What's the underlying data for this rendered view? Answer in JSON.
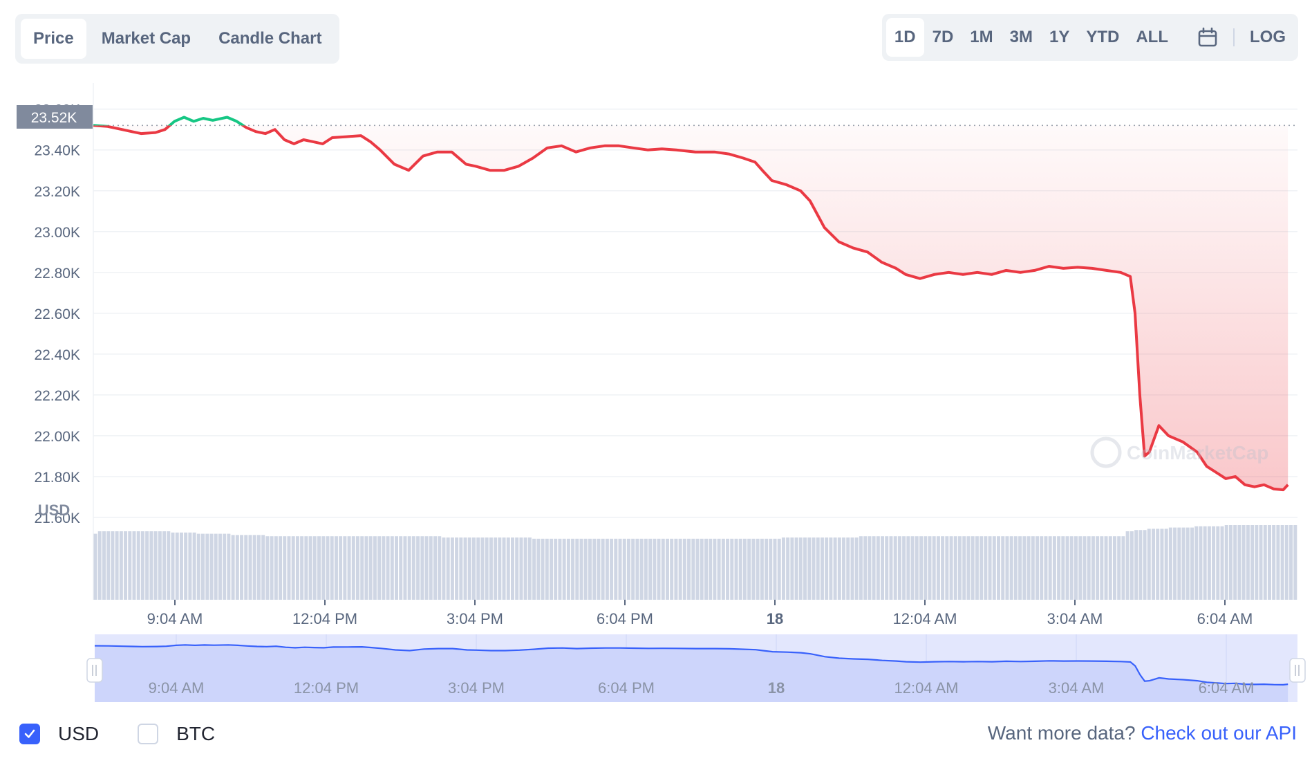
{
  "tabs": [
    {
      "label": "Price",
      "active": true
    },
    {
      "label": "Market Cap",
      "active": false
    },
    {
      "label": "Candle Chart",
      "active": false
    }
  ],
  "ranges": [
    {
      "label": "1D",
      "active": true
    },
    {
      "label": "7D",
      "active": false
    },
    {
      "label": "1M",
      "active": false
    },
    {
      "label": "3M",
      "active": false
    },
    {
      "label": "1Y",
      "active": false
    },
    {
      "label": "YTD",
      "active": false
    },
    {
      "label": "ALL",
      "active": false
    }
  ],
  "calendar_icon": "calendar-icon",
  "log_label": "LOG",
  "currency_label": "USD",
  "current_price_label": "23.52K",
  "watermark": "CoinMarketCap",
  "footer": {
    "usd_label": "USD",
    "usd_checked": true,
    "btc_label": "BTC",
    "btc_checked": false,
    "prompt": "Want more data?",
    "link": "Check out our API"
  },
  "colors": {
    "up": "#16c784",
    "down": "#ea3943",
    "accent": "#3861fb",
    "volume": "#cfd6e4"
  },
  "chart_data": {
    "type": "area",
    "y_unit": "USD",
    "ylim": [
      21400,
      23660
    ],
    "y_ticks": [
      23600,
      23400,
      23200,
      23000,
      22800,
      22600,
      22400,
      22200,
      22000,
      21800,
      21600
    ],
    "y_tick_labels": [
      "23.60K",
      "23.40K",
      "23.20K",
      "23.00K",
      "22.80K",
      "22.60K",
      "22.40K",
      "22.20K",
      "22.00K",
      "21.80K",
      "21.60K"
    ],
    "x_tick_labels": [
      "9:04 AM",
      "12:04 PM",
      "3:04 PM",
      "6:04 PM",
      "18",
      "12:04 AM",
      "3:04 AM",
      "6:04 AM"
    ],
    "grid": true,
    "reference_price": 23520,
    "series": [
      {
        "points": [
          [
            0,
            23520
          ],
          [
            0.3,
            23515
          ],
          [
            0.6,
            23500
          ],
          [
            0.8,
            23490
          ],
          [
            1.0,
            23480
          ],
          [
            1.3,
            23485
          ],
          [
            1.5,
            23500
          ],
          [
            1.7,
            23540
          ],
          [
            1.9,
            23560
          ],
          [
            2.1,
            23540
          ],
          [
            2.3,
            23555
          ],
          [
            2.5,
            23545
          ],
          [
            2.8,
            23560
          ],
          [
            3.0,
            23540
          ],
          [
            3.2,
            23510
          ],
          [
            3.4,
            23490
          ],
          [
            3.6,
            23480
          ],
          [
            3.8,
            23500
          ],
          [
            4.0,
            23450
          ],
          [
            4.2,
            23430
          ],
          [
            4.4,
            23450
          ],
          [
            4.6,
            23440
          ],
          [
            4.8,
            23430
          ],
          [
            5.0,
            23460
          ],
          [
            5.3,
            23465
          ],
          [
            5.6,
            23470
          ],
          [
            5.8,
            23440
          ],
          [
            6.0,
            23400
          ],
          [
            6.3,
            23330
          ],
          [
            6.6,
            23300
          ],
          [
            6.9,
            23370
          ],
          [
            7.2,
            23390
          ],
          [
            7.5,
            23390
          ],
          [
            7.8,
            23330
          ],
          [
            8.0,
            23320
          ],
          [
            8.3,
            23300
          ],
          [
            8.6,
            23300
          ],
          [
            8.9,
            23320
          ],
          [
            9.2,
            23360
          ],
          [
            9.5,
            23410
          ],
          [
            9.8,
            23420
          ],
          [
            10.1,
            23390
          ],
          [
            10.4,
            23410
          ],
          [
            10.7,
            23420
          ],
          [
            11.0,
            23420
          ],
          [
            11.3,
            23410
          ],
          [
            11.6,
            23400
          ],
          [
            11.9,
            23405
          ],
          [
            12.2,
            23400
          ],
          [
            12.6,
            23390
          ],
          [
            13.0,
            23390
          ],
          [
            13.3,
            23380
          ],
          [
            13.6,
            23360
          ],
          [
            13.85,
            23340
          ],
          [
            14.0,
            23300
          ],
          [
            14.2,
            23250
          ],
          [
            14.5,
            23230
          ],
          [
            14.8,
            23200
          ],
          [
            15.0,
            23150
          ],
          [
            15.3,
            23020
          ],
          [
            15.6,
            22950
          ],
          [
            15.9,
            22920
          ],
          [
            16.2,
            22900
          ],
          [
            16.5,
            22850
          ],
          [
            16.8,
            22820
          ],
          [
            17.0,
            22790
          ],
          [
            17.3,
            22770
          ],
          [
            17.6,
            22790
          ],
          [
            17.9,
            22800
          ],
          [
            18.2,
            22790
          ],
          [
            18.5,
            22800
          ],
          [
            18.8,
            22790
          ],
          [
            19.1,
            22810
          ],
          [
            19.4,
            22800
          ],
          [
            19.7,
            22810
          ],
          [
            20.0,
            22830
          ],
          [
            20.3,
            22820
          ],
          [
            20.6,
            22825
          ],
          [
            20.9,
            22820
          ],
          [
            21.2,
            22810
          ],
          [
            21.5,
            22800
          ],
          [
            21.7,
            22780
          ],
          [
            21.8,
            22600
          ],
          [
            21.9,
            22200
          ],
          [
            22.0,
            21900
          ],
          [
            22.1,
            21920
          ],
          [
            22.3,
            22050
          ],
          [
            22.5,
            22000
          ],
          [
            22.8,
            21970
          ],
          [
            23.1,
            21920
          ],
          [
            23.3,
            21850
          ],
          [
            23.5,
            21820
          ],
          [
            23.7,
            21790
          ],
          [
            23.9,
            21800
          ],
          [
            24.1,
            21760
          ],
          [
            24.3,
            21750
          ],
          [
            24.5,
            21760
          ],
          [
            24.7,
            21740
          ],
          [
            24.9,
            21735
          ],
          [
            25.0,
            21760
          ]
        ]
      }
    ],
    "volume": [
      0.53,
      0.55,
      0.55,
      0.55,
      0.55,
      0.55,
      0.55,
      0.55,
      0.55,
      0.55,
      0.55,
      0.55,
      0.55,
      0.55,
      0.55,
      0.55,
      0.55,
      0.55,
      0.54,
      0.54,
      0.54,
      0.54,
      0.54,
      0.54,
      0.53,
      0.53,
      0.53,
      0.53,
      0.53,
      0.53,
      0.53,
      0.53,
      0.52,
      0.52,
      0.52,
      0.52,
      0.52,
      0.52,
      0.52,
      0.52,
      0.51,
      0.51,
      0.51,
      0.51,
      0.51,
      0.51,
      0.51,
      0.51,
      0.51,
      0.51,
      0.51,
      0.51,
      0.51,
      0.51,
      0.51,
      0.51,
      0.51,
      0.51,
      0.51,
      0.51,
      0.51,
      0.51,
      0.51,
      0.51,
      0.51,
      0.51,
      0.51,
      0.51,
      0.51,
      0.51,
      0.51,
      0.51,
      0.51,
      0.51,
      0.51,
      0.51,
      0.51,
      0.51,
      0.51,
      0.51,
      0.51,
      0.5,
      0.5,
      0.5,
      0.5,
      0.5,
      0.5,
      0.5,
      0.5,
      0.5,
      0.5,
      0.5,
      0.5,
      0.5,
      0.5,
      0.5,
      0.5,
      0.5,
      0.5,
      0.5,
      0.5,
      0.5,
      0.49,
      0.49,
      0.49,
      0.49,
      0.49,
      0.49,
      0.49,
      0.49,
      0.49,
      0.49,
      0.49,
      0.49,
      0.49,
      0.49,
      0.49,
      0.49,
      0.49,
      0.49,
      0.49,
      0.49,
      0.49,
      0.49,
      0.49,
      0.49,
      0.49,
      0.49,
      0.49,
      0.49,
      0.49,
      0.49,
      0.49,
      0.49,
      0.49,
      0.49,
      0.49,
      0.49,
      0.49,
      0.49,
      0.49,
      0.49,
      0.49,
      0.49,
      0.49,
      0.49,
      0.49,
      0.49,
      0.49,
      0.49,
      0.49,
      0.49,
      0.49,
      0.49,
      0.49,
      0.49,
      0.49,
      0.49,
      0.49,
      0.49,
      0.5,
      0.5,
      0.5,
      0.5,
      0.5,
      0.5,
      0.5,
      0.5,
      0.5,
      0.5,
      0.5,
      0.5,
      0.5,
      0.5,
      0.5,
      0.5,
      0.5,
      0.5,
      0.51,
      0.51,
      0.51,
      0.51,
      0.51,
      0.51,
      0.51,
      0.51,
      0.51,
      0.51,
      0.51,
      0.51,
      0.51,
      0.51,
      0.51,
      0.51,
      0.51,
      0.51,
      0.51,
      0.51,
      0.51,
      0.51,
      0.51,
      0.51,
      0.51,
      0.51,
      0.51,
      0.51,
      0.51,
      0.51,
      0.51,
      0.51,
      0.51,
      0.51,
      0.51,
      0.51,
      0.51,
      0.51,
      0.51,
      0.51,
      0.51,
      0.51,
      0.51,
      0.51,
      0.51,
      0.51,
      0.51,
      0.51,
      0.51,
      0.51,
      0.51,
      0.51,
      0.51,
      0.51,
      0.51,
      0.51,
      0.51,
      0.51,
      0.51,
      0.51,
      0.51,
      0.51,
      0.55,
      0.55,
      0.56,
      0.56,
      0.56,
      0.57,
      0.57,
      0.57,
      0.57,
      0.57,
      0.58,
      0.58,
      0.58,
      0.58,
      0.58,
      0.58,
      0.59,
      0.59,
      0.59,
      0.59,
      0.59,
      0.59,
      0.59,
      0.6,
      0.6,
      0.6,
      0.6,
      0.6,
      0.6,
      0.6,
      0.6,
      0.6,
      0.6,
      0.6,
      0.6,
      0.6,
      0.6,
      0.6,
      0.6,
      0.6
    ]
  }
}
